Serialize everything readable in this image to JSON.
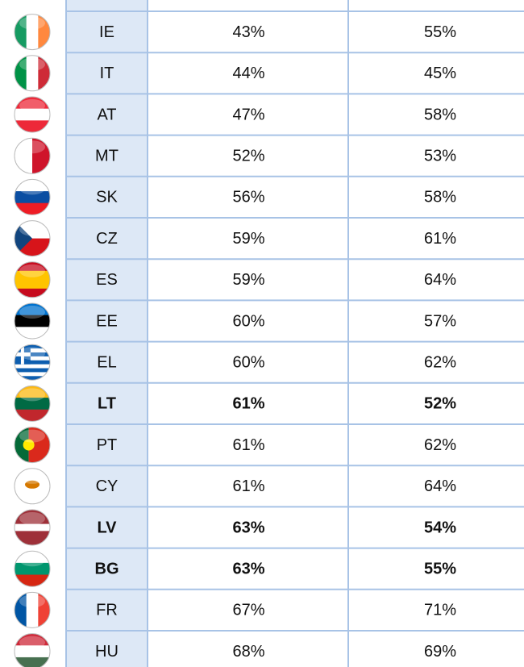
{
  "table": {
    "rows": [
      {
        "code": "IE",
        "col1": "43%",
        "col2": "55%"
      },
      {
        "code": "IT",
        "col1": "44%",
        "col2": "45%"
      },
      {
        "code": "AT",
        "col1": "47%",
        "col2": "58%"
      },
      {
        "code": "MT",
        "col1": "52%",
        "col2": "53%"
      },
      {
        "code": "SK",
        "col1": "56%",
        "col2": "58%"
      },
      {
        "code": "CZ",
        "col1": "59%",
        "col2": "61%"
      },
      {
        "code": "ES",
        "col1": "59%",
        "col2": "64%"
      },
      {
        "code": "EE",
        "col1": "60%",
        "col2": "57%"
      },
      {
        "code": "EL",
        "col1": "60%",
        "col2": "62%"
      },
      {
        "code": "LT",
        "col1": "61%",
        "col2": "52%",
        "bold": true
      },
      {
        "code": "PT",
        "col1": "61%",
        "col2": "62%"
      },
      {
        "code": "CY",
        "col1": "61%",
        "col2": "64%"
      },
      {
        "code": "LV",
        "col1": "63%",
        "col2": "54%",
        "bold": true
      },
      {
        "code": "BG",
        "col1": "63%",
        "col2": "55%",
        "bold": true
      },
      {
        "code": "FR",
        "col1": "67%",
        "col2": "71%"
      },
      {
        "code": "HU",
        "col1": "68%",
        "col2": "69%"
      }
    ]
  }
}
